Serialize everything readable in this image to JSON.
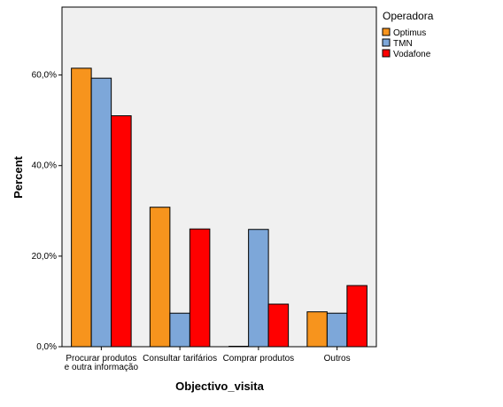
{
  "chart_data": {
    "type": "bar",
    "xlabel": "Objectivo_visita",
    "ylabel": "Percent",
    "ylim": [
      0,
      75
    ],
    "yticks": [
      0,
      20,
      40,
      60
    ],
    "ytick_labels": [
      "0,0%",
      "20,0%",
      "40,0%",
      "60,0%"
    ],
    "categories": [
      [
        "Procurar produtos",
        "e outra informação"
      ],
      [
        "Consultar tarifários"
      ],
      [
        "Comprar produtos"
      ],
      [
        "Outros"
      ]
    ],
    "legend_title": "Operadora",
    "legend_position": "right",
    "grid": false,
    "plot_background": "#f0f0f0",
    "series": [
      {
        "name": "Optimus",
        "color": "#f7941d",
        "values": [
          61.5,
          30.8,
          0.0,
          7.7
        ]
      },
      {
        "name": "TMN",
        "color": "#7da7d9",
        "values": [
          59.3,
          7.4,
          25.9,
          7.4
        ]
      },
      {
        "name": "Vodafone",
        "color": "#ff0000",
        "values": [
          51.0,
          26.0,
          9.4,
          13.5
        ]
      }
    ]
  }
}
